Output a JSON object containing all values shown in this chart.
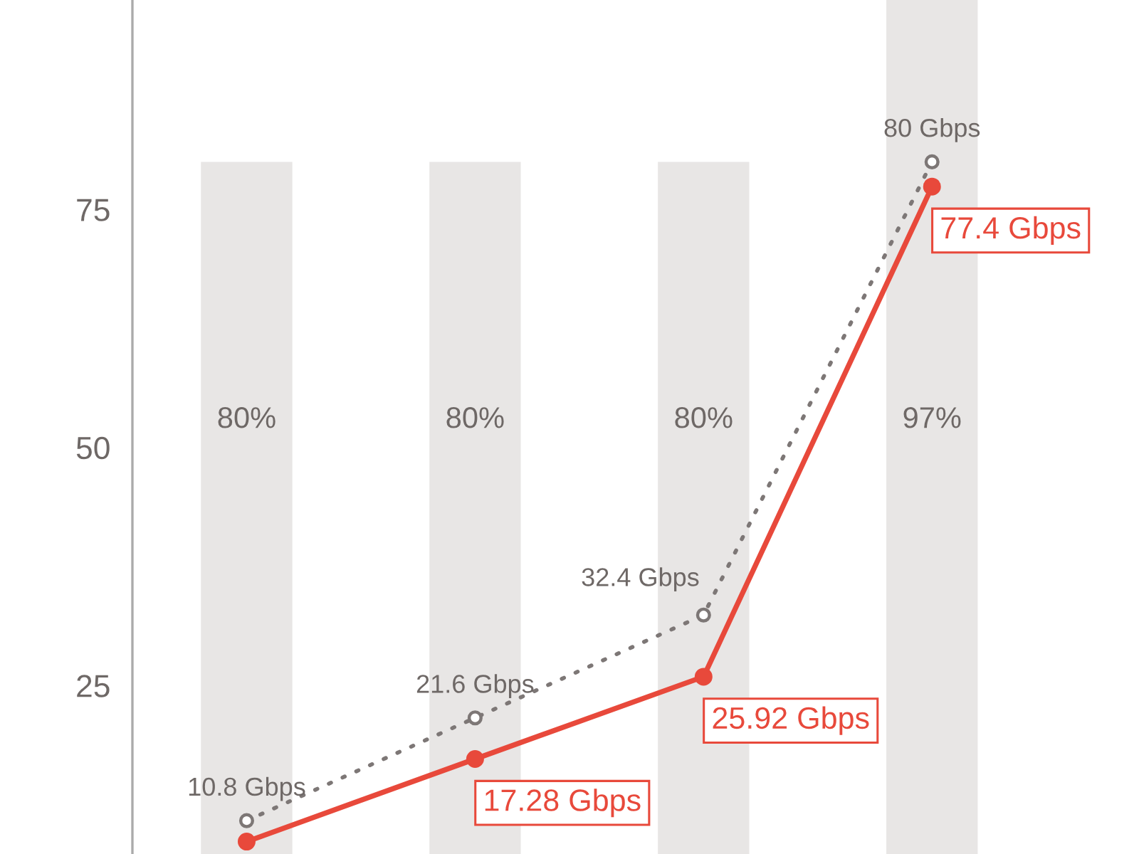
{
  "chart_data": {
    "type": "bar",
    "categories": [
      null,
      null,
      null,
      null
    ],
    "ylim": [
      7.3,
      97
    ],
    "yticks": [
      25,
      50,
      75
    ],
    "tick_labels": "y",
    "series": [
      {
        "color": "#e8e6e5",
        "values": [
          80,
          80,
          80,
          97
        ],
        "value_labels": [
          "80%",
          "80%",
          "80%",
          "97%"
        ]
      },
      {
        "type": "line",
        "color": "#7d7776",
        "values": [
          10.8,
          21.6,
          32.4,
          80
        ],
        "marker": "circle",
        "line_style": "dotted",
        "value_labels": [
          "10.8 Gbps",
          "21.6 Gbps",
          "32.4 Gbps",
          "80 Gbps"
        ]
      },
      {
        "type": "line",
        "color": "#e8493b",
        "values": [
          8.6,
          17.28,
          25.92,
          77.4
        ],
        "marker": "circle",
        "line_style": "solid",
        "value_labels": [
          null,
          "17.28 Gbps",
          "25.92 Gbps",
          "77.4 Gbps"
        ]
      }
    ]
  }
}
